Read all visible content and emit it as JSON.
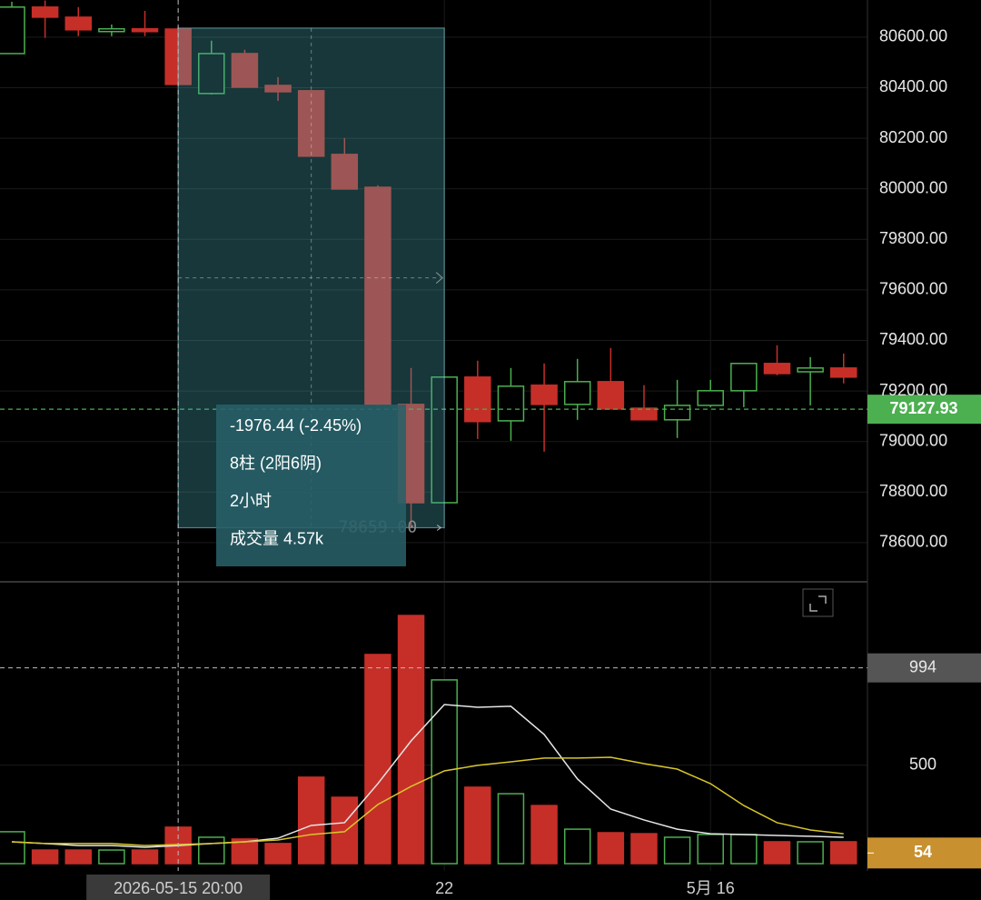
{
  "chart_data": [
    {
      "type": "candlestick",
      "open": [
        80535,
        80719,
        80679,
        80622,
        80633,
        80632,
        80377,
        80535,
        80409,
        80388,
        80136,
        80006,
        79147,
        78758,
        79255,
        79082,
        79223,
        79147,
        79237,
        79132,
        79086,
        79143,
        79201,
        79309,
        79276,
        79291
      ],
      "high": [
        80740,
        80745,
        80719,
        80650,
        80704,
        80640,
        80586,
        80550,
        80442,
        80390,
        80201,
        80014,
        79291,
        79255,
        79320,
        79291,
        79309,
        79327,
        79370,
        79223,
        79244,
        79244,
        79309,
        79381,
        79334,
        79348
      ],
      "low": [
        80535,
        80597,
        80604,
        80604,
        80604,
        80413,
        80373,
        80400,
        80348,
        80128,
        79999,
        79140,
        78659,
        78758,
        79010,
        79003,
        78960,
        79086,
        79129,
        79086,
        79014,
        79136,
        79136,
        79262,
        79143,
        79230
      ],
      "close": [
        80719,
        80679,
        80629,
        80633,
        80622,
        80413,
        80535,
        80402,
        80384,
        80129,
        79999,
        79147,
        78758,
        79255,
        79079,
        79219,
        79147,
        79237,
        79129,
        79086,
        79143,
        79201,
        79309,
        79269,
        79291,
        79255
      ],
      "up_color": "#4caf50",
      "down_color": "#c62f28",
      "ylim": [
        78445,
        80747
      ],
      "yticks": [
        {
          "value": 80600,
          "label": "80600.00"
        },
        {
          "value": 80400,
          "label": "80400.00"
        },
        {
          "value": 80200,
          "label": "80200.00"
        },
        {
          "value": 80000,
          "label": "80000.00"
        },
        {
          "value": 79800,
          "label": "79800.00"
        },
        {
          "value": 79600,
          "label": "79600.00"
        },
        {
          "value": 79400,
          "label": "79400.00"
        },
        {
          "value": 79200,
          "label": "79200.00"
        },
        {
          "value": 79000,
          "label": "79000.00"
        },
        {
          "value": 78800,
          "label": "78800.00"
        },
        {
          "value": 78600,
          "label": "78600.00"
        }
      ],
      "grid": true,
      "last_price": 79127.93,
      "selection": {
        "start": 5,
        "end": 13,
        "high": 80636,
        "low": 78659,
        "low_label": "78659.00"
      },
      "tooltip": [
        "-1976.44 (-2.45%)",
        "8柱 (2阳6阴)",
        "2小时",
        "成交量 4.57k"
      ]
    },
    {
      "type": "volume",
      "values": [
        162,
        69,
        69,
        69,
        69,
        185,
        134,
        125,
        102,
        439,
        337,
        1062,
        1260,
        933,
        388,
        355,
        295,
        175,
        157,
        152,
        134,
        148,
        148,
        111,
        111,
        111
      ],
      "series": [
        {
          "color": "#e6e6e6",
          "values": [
            111,
            102,
            92,
            92,
            83,
            92,
            102,
            111,
            129,
            194,
            208,
            406,
            623,
            808,
            794,
            799,
            656,
            430,
            277,
            222,
            175,
            152,
            148,
            143,
            139,
            134
          ]
        },
        {
          "color": "#d8c62a",
          "values": [
            111,
            102,
            102,
            102,
            92,
            97,
            102,
            111,
            120,
            148,
            162,
            300,
            392,
            471,
            499,
            517,
            536,
            536,
            540,
            508,
            480,
            406,
            295,
            208,
            171,
            152
          ]
        }
      ],
      "ylim": [
        0,
        1408
      ],
      "yticks": [
        500
      ],
      "crosshair_value": 994,
      "last_value": 54,
      "xticks": [
        {
          "value": 5,
          "label": "2026-05-15 20:00"
        },
        {
          "value": 13,
          "label": "22"
        },
        {
          "value": 21,
          "label": "5月 16"
        }
      ]
    }
  ]
}
